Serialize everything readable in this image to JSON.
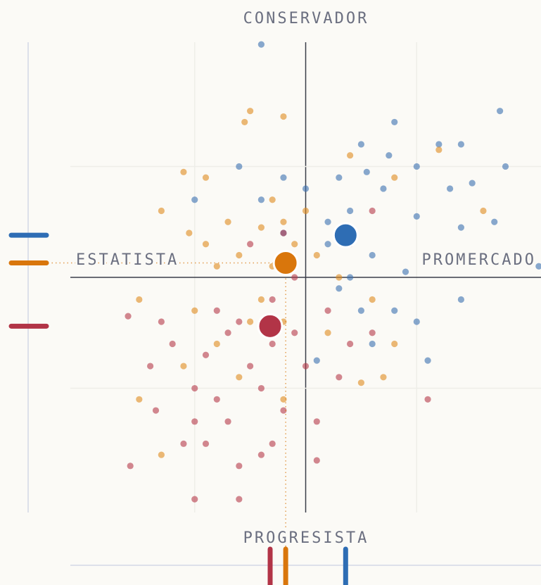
{
  "chart_data": {
    "type": "scatter",
    "axis_labels": {
      "top": "CONSERVADOR",
      "bottom": "PROGRESISTA",
      "left": "ESTATISTA",
      "right": "PROMERCADO"
    },
    "xlim": [
      -2.12,
      2.12
    ],
    "ylim": [
      -2.12,
      2.12
    ],
    "xticks": [
      -1,
      0,
      1
    ],
    "yticks": [
      -1,
      0,
      1
    ],
    "grid": true,
    "series": [
      {
        "color": "#3a70b0",
        "x": [
          0.3,
          0.5,
          0.8,
          0.75,
          1.0,
          1.2,
          1.3,
          1.4,
          1.7,
          1.75,
          1.8,
          2.0,
          1.4,
          1.0,
          1.1,
          0.6,
          0.5,
          0.2,
          0.0,
          -0.2,
          -0.4,
          -1.0,
          -0.6,
          0.4,
          0.6,
          0.9,
          0.3,
          0.1,
          -0.4,
          1.4,
          1.5,
          0.7,
          0.2,
          1.0,
          0.4,
          -0.2,
          0.8,
          1.6,
          2.1,
          0.55
        ],
        "values": [
          0.9,
          1.2,
          1.4,
          1.1,
          1.0,
          1.2,
          0.8,
          0.45,
          0.5,
          1.5,
          1.0,
          0.15,
          -0.2,
          -0.4,
          -0.75,
          -0.6,
          -0.3,
          0.3,
          0.8,
          0.9,
          0.7,
          0.7,
          1.0,
          0.6,
          0.2,
          0.05,
          -0.1,
          -0.75,
          2.1,
          1.2,
          0.85,
          0.8,
          0.5,
          0.55,
          0.0,
          0.4,
          -0.3,
          0.2,
          0.1,
          0.95
        ]
      },
      {
        "color": "#e08a1e",
        "x": [
          -0.5,
          -0.55,
          -0.2,
          -0.9,
          -1.1,
          -1.05,
          -1.2,
          -0.9,
          -0.7,
          -0.3,
          -0.2,
          -0.1,
          0.1,
          0.3,
          0.6,
          0.8,
          0.7,
          0.5,
          1.6,
          1.2,
          0.8,
          0.4,
          -1.5,
          -1.0,
          -0.8,
          -0.6,
          -1.1,
          -0.4,
          -0.2,
          -0.2,
          -1.5,
          -1.3,
          -0.6,
          -0.4,
          -0.3,
          0.0,
          -0.8,
          -1.3,
          0.2,
          -0.5
        ],
        "values": [
          1.5,
          1.4,
          1.45,
          0.9,
          0.95,
          0.4,
          0.2,
          0.3,
          0.5,
          0.7,
          0.5,
          0.3,
          0.2,
          0.0,
          -0.2,
          -0.6,
          -0.9,
          -0.95,
          0.6,
          1.15,
          0.9,
          1.1,
          -0.2,
          -0.3,
          -0.6,
          -0.9,
          -0.8,
          -0.2,
          -0.4,
          -1.1,
          -1.1,
          -1.6,
          0.2,
          0.45,
          0.1,
          0.6,
          0.1,
          0.6,
          -0.5,
          -0.4
        ]
      },
      {
        "color": "#b5394a",
        "x": [
          -1.6,
          -1.3,
          -1.4,
          -1.35,
          -1.0,
          -0.9,
          -1.1,
          -0.7,
          -0.6,
          -0.4,
          -0.3,
          -0.2,
          0.1,
          0.1,
          -1.58,
          -1.0,
          -0.8,
          -0.5,
          -0.3,
          -0.1,
          0.2,
          0.4,
          0.6,
          -0.6,
          -0.8,
          -0.3,
          -0.1,
          0.0,
          -0.5,
          -0.2,
          0.4,
          0.6,
          -0.9,
          -1.2,
          1.1,
          -1.0,
          -0.7,
          0.3,
          -0.4,
          -0.6
        ],
        "values": [
          -0.35,
          -0.4,
          -0.8,
          -1.2,
          -1.0,
          -1.5,
          -1.5,
          -1.3,
          -1.7,
          -1.6,
          -1.5,
          -1.2,
          -1.3,
          -1.65,
          -1.7,
          -2.0,
          -1.1,
          -0.8,
          -0.6,
          -0.5,
          -0.3,
          -0.6,
          -0.5,
          -0.4,
          -0.3,
          -0.2,
          0.0,
          -0.8,
          0.3,
          0.4,
          0.3,
          0.6,
          -0.7,
          -0.6,
          -1.1,
          -1.3,
          -0.5,
          -0.9,
          -1.0,
          -2.0
        ]
      }
    ],
    "centroids": [
      {
        "color": "#2e6db4",
        "x": 0.36,
        "y": 0.38
      },
      {
        "color": "#d9760c",
        "x": -0.18,
        "y": 0.13
      },
      {
        "color": "#b23447",
        "x": -0.32,
        "y": -0.44
      }
    ]
  }
}
